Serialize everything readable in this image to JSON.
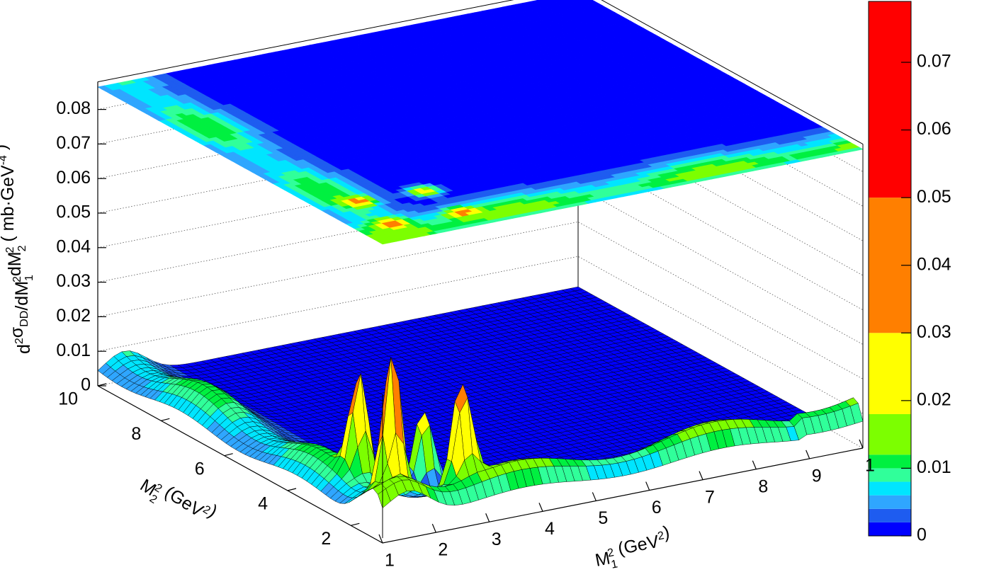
{
  "chart_data": {
    "type": "surface3d",
    "title": "",
    "x_axis": {
      "label_parts": [
        "M",
        "1",
        "2",
        " (GeV",
        "2",
        ")"
      ],
      "range": [
        1,
        10
      ],
      "ticks": [
        "1",
        "2",
        "3",
        "4",
        "5",
        "6",
        "7",
        "8",
        "9",
        "1"
      ]
    },
    "y_axis": {
      "label_parts": [
        "M",
        "2",
        "2",
        " (GeV",
        "2",
        ")"
      ],
      "range": [
        1,
        10
      ],
      "ticks": [
        "2",
        "4",
        "6",
        "8",
        "10"
      ]
    },
    "z_axis": {
      "label_parts": [
        "d",
        "2",
        "σ",
        "DD",
        "/dM",
        "1",
        "2",
        "dM",
        "2",
        "2",
        " ( mb·GeV",
        "-4",
        " )"
      ],
      "range": [
        0,
        0.088
      ],
      "ticks": [
        "0",
        "0.01",
        "0.02",
        "0.03",
        "0.04",
        "0.05",
        "0.06",
        "0.07",
        "0.08"
      ]
    },
    "colorbar": {
      "range": [
        0,
        0.079
      ],
      "ticks": [
        "0",
        "0.01",
        "0.02",
        "0.03",
        "0.04",
        "0.05",
        "0.06",
        "0.07"
      ],
      "levels": [
        {
          "from": 0.0,
          "to": 0.002,
          "color": "#0000ff"
        },
        {
          "from": 0.002,
          "to": 0.004,
          "color": "#1e5cf0"
        },
        {
          "from": 0.004,
          "to": 0.006,
          "color": "#2fa6ff"
        },
        {
          "from": 0.006,
          "to": 0.008,
          "color": "#00e5ff"
        },
        {
          "from": 0.008,
          "to": 0.01,
          "color": "#30ff9a"
        },
        {
          "from": 0.01,
          "to": 0.012,
          "color": "#00f040"
        },
        {
          "from": 0.012,
          "to": 0.018,
          "color": "#7cff00"
        },
        {
          "from": 0.018,
          "to": 0.03,
          "color": "#ffff00"
        },
        {
          "from": 0.03,
          "to": 0.05,
          "color": "#ff7f00"
        },
        {
          "from": 0.05,
          "to": 0.079,
          "color": "#ff0000"
        }
      ]
    },
    "peaks": [
      {
        "m1sq": 1.65,
        "m2sq": 1.8,
        "z": 0.042,
        "s1": 0.2,
        "s2": 0.2
      },
      {
        "m1sq": 1.75,
        "m2sq": 3.0,
        "z": 0.03,
        "s1": 0.2,
        "s2": 0.22
      },
      {
        "m1sq": 2.9,
        "m2sq": 1.7,
        "z": 0.031,
        "s1": 0.22,
        "s2": 0.2
      },
      {
        "m1sq": 2.9,
        "m2sq": 2.9,
        "z": 0.023,
        "s1": 0.22,
        "s2": 0.22
      }
    ],
    "ridge_level": 0.012,
    "grid": true
  },
  "colors": {
    "frame": "#000000",
    "grid": "#555555",
    "mesh": "#000000"
  }
}
